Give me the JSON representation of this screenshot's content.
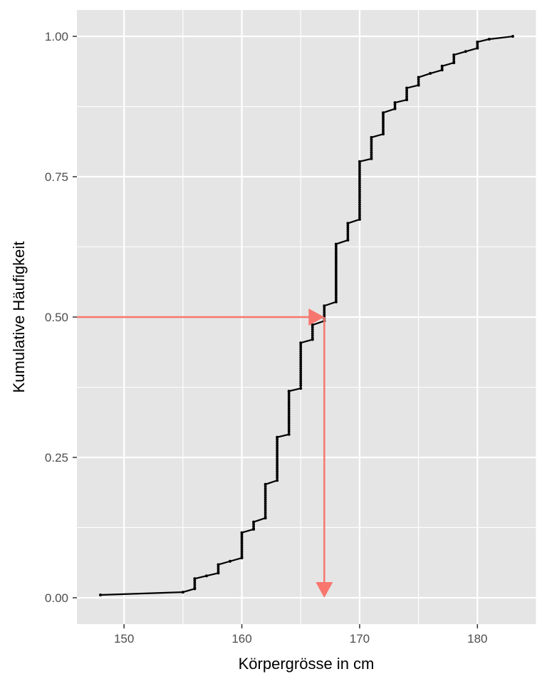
{
  "chart_data": {
    "type": "line",
    "title": "",
    "xlabel": "Körpergrösse in cm",
    "ylabel": "Kumulative Häufigkeit",
    "xlim": [
      146,
      185
    ],
    "ylim": [
      -0.047,
      1.047
    ],
    "x_ticks": [
      150,
      160,
      170,
      180
    ],
    "x_tick_labels": [
      "150",
      "160",
      "170",
      "180"
    ],
    "y_ticks": [
      0,
      0.25,
      0.5,
      0.75,
      1
    ],
    "y_tick_labels": [
      "0.00",
      "0.25",
      "0.50",
      "0.75",
      "1.00"
    ],
    "grid": true,
    "series": [
      {
        "values": [
          [
            148,
            0.005
          ],
          [
            155,
            0.01
          ],
          [
            156,
            0.016
          ],
          [
            156,
            0.034
          ],
          [
            157,
            0.039
          ],
          [
            158,
            0.044
          ],
          [
            158,
            0.059
          ],
          [
            159,
            0.065
          ],
          [
            160,
            0.071
          ],
          [
            160,
            0.116
          ],
          [
            161,
            0.122
          ],
          [
            161,
            0.135
          ],
          [
            162,
            0.142
          ],
          [
            162,
            0.202
          ],
          [
            163,
            0.209
          ],
          [
            163,
            0.286
          ],
          [
            164,
            0.291
          ],
          [
            164,
            0.368
          ],
          [
            165,
            0.373
          ],
          [
            165,
            0.454
          ],
          [
            166,
            0.46
          ],
          [
            166,
            0.486
          ],
          [
            167,
            0.493
          ],
          [
            167,
            0.52
          ],
          [
            168,
            0.527
          ],
          [
            168,
            0.63
          ],
          [
            169,
            0.637
          ],
          [
            169,
            0.667
          ],
          [
            170,
            0.674
          ],
          [
            170,
            0.777
          ],
          [
            171,
            0.782
          ],
          [
            171,
            0.82
          ],
          [
            172,
            0.826
          ],
          [
            172,
            0.864
          ],
          [
            173,
            0.871
          ],
          [
            173,
            0.882
          ],
          [
            174,
            0.887
          ],
          [
            174,
            0.908
          ],
          [
            175,
            0.913
          ],
          [
            175,
            0.927
          ],
          [
            176,
            0.934
          ],
          [
            177,
            0.94
          ],
          [
            177,
            0.947
          ],
          [
            178,
            0.953
          ],
          [
            178,
            0.967
          ],
          [
            179,
            0.973
          ],
          [
            180,
            0.979
          ],
          [
            180,
            0.99
          ],
          [
            181,
            0.995
          ],
          [
            183,
            1.0
          ]
        ]
      }
    ],
    "annotations": {
      "color": "#F8766D",
      "horizontal_arrow": {
        "from": [
          146,
          0.5
        ],
        "to": [
          167,
          0.5
        ]
      },
      "vertical_arrow": {
        "from": [
          167,
          0.5
        ],
        "to": [
          167,
          0.0
        ]
      }
    },
    "colors": {
      "panel": "#E5E5E5",
      "grid": "#FFFFFF",
      "line": "#000000"
    }
  }
}
